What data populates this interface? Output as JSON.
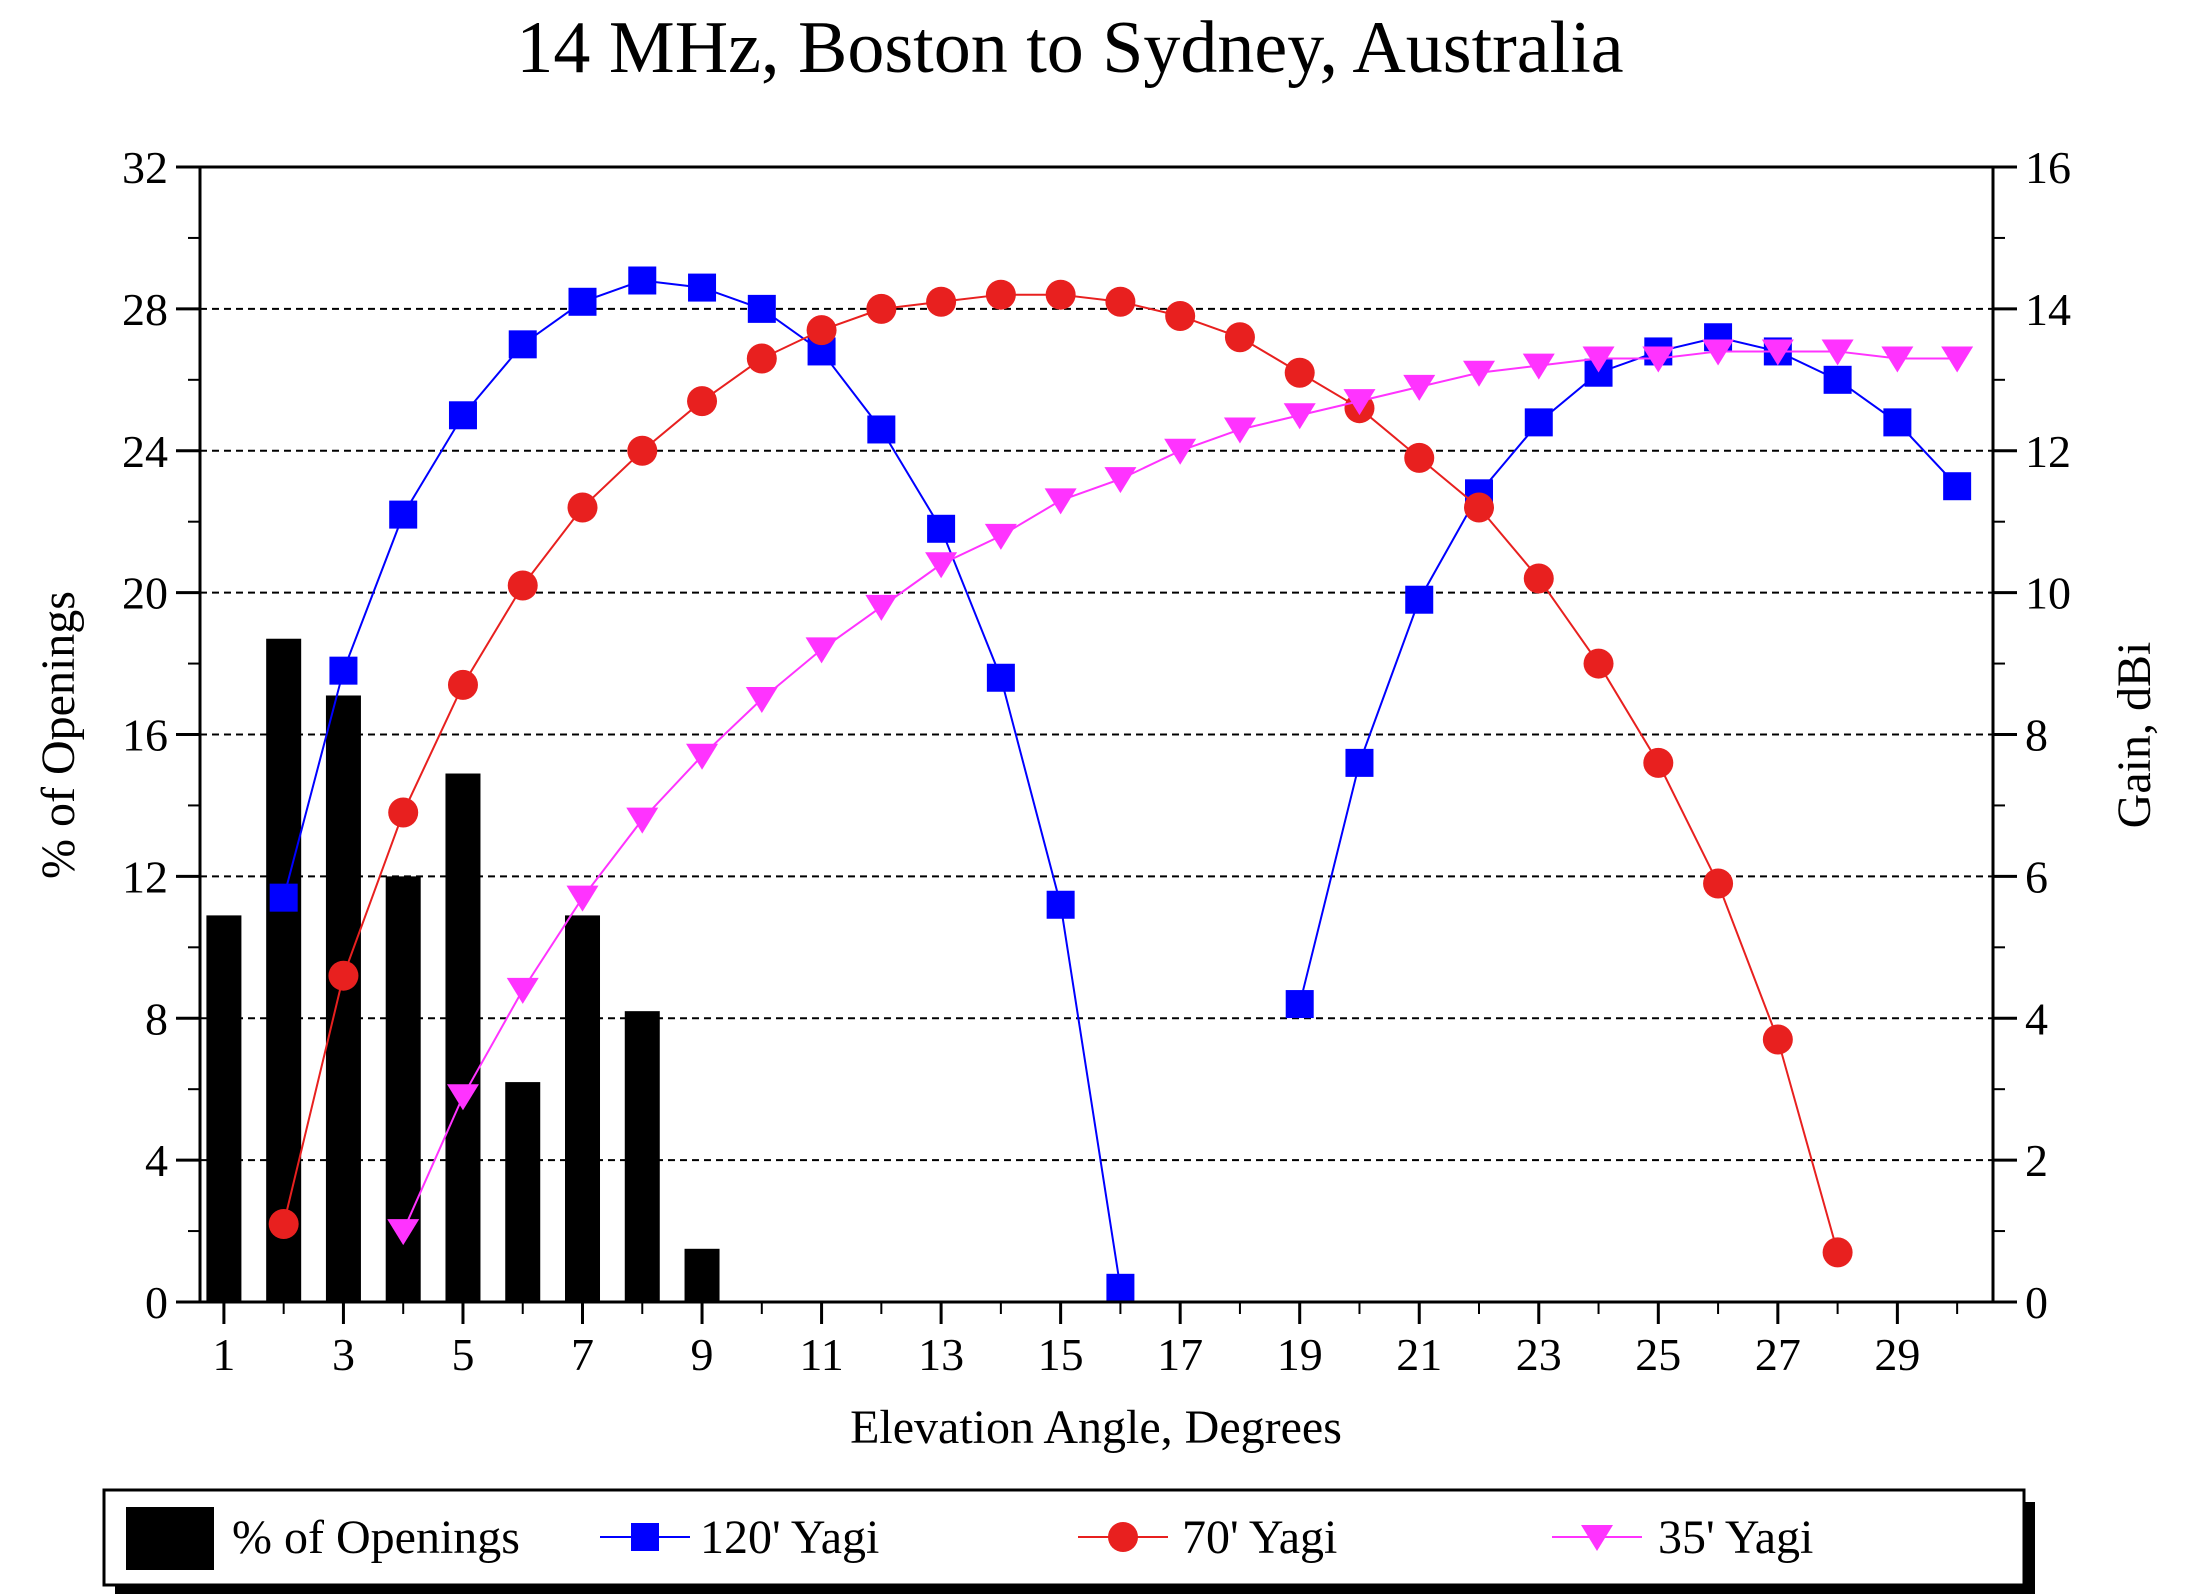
{
  "chart_data": {
    "type": "bar+line",
    "title": "14 MHz, Boston to Sydney, Australia",
    "xlabel": "Elevation Angle, Degrees",
    "ylabel_left": "% of Openings",
    "ylabel_right": "Gain, dBi",
    "xlim": [
      0.6,
      30.6
    ],
    "ylim_left": [
      0,
      32
    ],
    "ylim_right": [
      0,
      16
    ],
    "x_ticks": [
      "1",
      "3",
      "5",
      "7",
      "9",
      "11",
      "13",
      "15",
      "17",
      "19",
      "21",
      "23",
      "25",
      "27",
      "29"
    ],
    "y_ticks_left": [
      "0",
      "4",
      "8",
      "12",
      "16",
      "20",
      "24",
      "28",
      "32"
    ],
    "y_ticks_right": [
      "0",
      "2",
      "4",
      "6",
      "8",
      "10",
      "12",
      "14",
      "16"
    ],
    "grid": "horizontal dashed",
    "legend_position": "bottom",
    "bars": {
      "name": "% of Openings",
      "x": [
        1,
        2,
        3,
        4,
        5,
        6,
        7,
        8,
        9
      ],
      "values": [
        10.9,
        18.7,
        17.1,
        12.0,
        14.9,
        6.2,
        10.9,
        8.2,
        1.5
      ],
      "color": "#000000"
    },
    "series": [
      {
        "name": "120' Yagi",
        "color": "#0000ff",
        "marker": "square",
        "x": [
          2,
          3,
          4,
          5,
          6,
          7,
          8,
          9,
          10,
          11,
          12,
          13,
          14,
          15,
          16,
          19,
          20,
          21,
          22,
          23,
          24,
          25,
          26,
          27,
          28,
          29,
          30
        ],
        "values": [
          5.7,
          8.9,
          11.1,
          12.5,
          13.5,
          14.1,
          14.4,
          14.3,
          14.0,
          13.4,
          12.3,
          10.9,
          8.8,
          5.6,
          0.2,
          4.2,
          7.6,
          9.9,
          11.4,
          12.4,
          13.1,
          13.4,
          13.6,
          13.4,
          13.0,
          12.4,
          11.5
        ]
      },
      {
        "name": "70' Yagi",
        "color": "#e8201f",
        "marker": "circle",
        "x": [
          2,
          3,
          4,
          5,
          6,
          7,
          8,
          9,
          10,
          11,
          12,
          13,
          14,
          15,
          16,
          17,
          18,
          19,
          20,
          21,
          22,
          23,
          24,
          25,
          26,
          27,
          28
        ],
        "values": [
          1.1,
          4.6,
          6.9,
          8.7,
          10.1,
          11.2,
          12.0,
          12.7,
          13.3,
          13.7,
          14.0,
          14.1,
          14.2,
          14.2,
          14.1,
          13.9,
          13.6,
          13.1,
          12.6,
          11.9,
          11.2,
          10.2,
          9.0,
          7.6,
          5.9,
          3.7,
          0.7
        ]
      },
      {
        "name": "35' Yagi",
        "color": "#ff33ff",
        "marker": "triangle-down",
        "x": [
          4,
          5,
          6,
          7,
          8,
          9,
          10,
          11,
          12,
          13,
          14,
          15,
          16,
          17,
          18,
          19,
          20,
          21,
          22,
          23,
          24,
          25,
          26,
          27,
          28,
          29,
          30
        ],
        "values": [
          1.0,
          2.9,
          4.4,
          5.7,
          6.8,
          7.7,
          8.5,
          9.2,
          9.8,
          10.4,
          10.8,
          11.3,
          11.6,
          12.0,
          12.3,
          12.5,
          12.7,
          12.9,
          13.1,
          13.2,
          13.3,
          13.3,
          13.4,
          13.4,
          13.4,
          13.3,
          13.3
        ]
      }
    ]
  }
}
